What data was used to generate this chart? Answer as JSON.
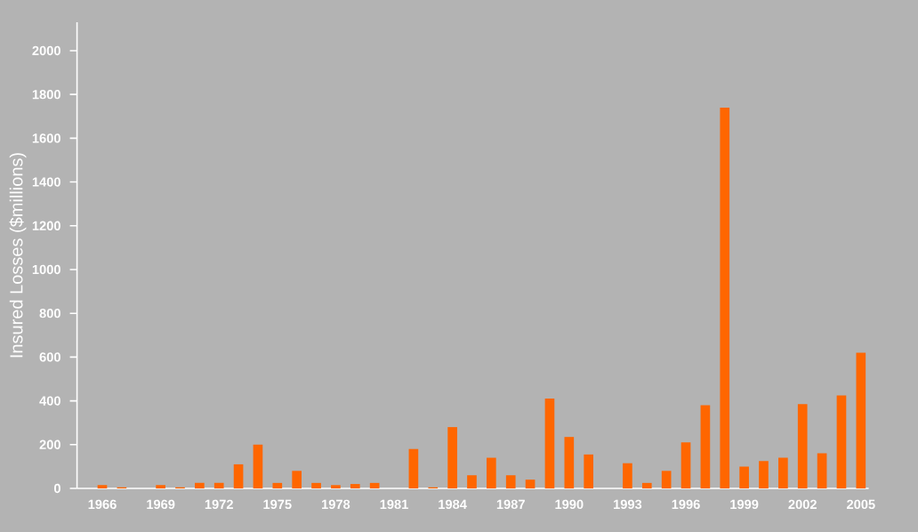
{
  "chart_data": {
    "type": "bar",
    "ylabel": "Insured Losses ($millions)",
    "categories": [
      "1966",
      null,
      null,
      "1969",
      null,
      null,
      "1972",
      null,
      null,
      "1975",
      null,
      null,
      "1978",
      null,
      null,
      "1981",
      null,
      null,
      "1984",
      null,
      null,
      "1987",
      null,
      null,
      "1990",
      null,
      null,
      "1993",
      null,
      null,
      "1996",
      null,
      null,
      "1999",
      null,
      null,
      "2002",
      null,
      null,
      "2005"
    ],
    "values": [
      15,
      5,
      0,
      15,
      5,
      25,
      25,
      110,
      200,
      25,
      80,
      25,
      15,
      20,
      25,
      0,
      180,
      5,
      280,
      60,
      140,
      60,
      40,
      410,
      235,
      155,
      0,
      115,
      25,
      80,
      210,
      380,
      1740,
      100,
      125,
      140,
      385,
      160,
      425,
      620
    ],
    "color": "#ff6600",
    "ylim": [
      0,
      2130
    ],
    "yticks": [
      0,
      200,
      400,
      600,
      800,
      1000,
      1200,
      1400,
      1600,
      1800,
      2000
    ],
    "grid": false
  }
}
